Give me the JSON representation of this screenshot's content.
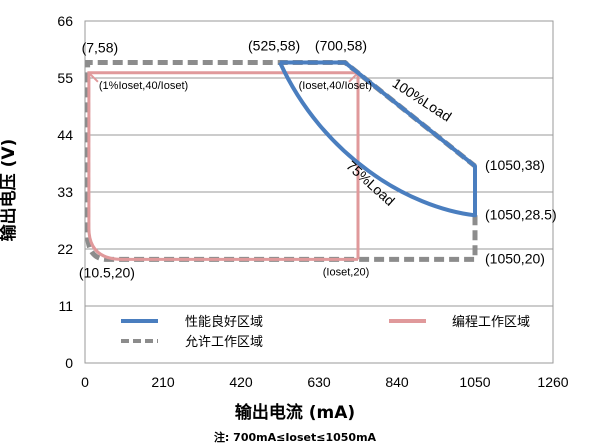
{
  "chart_data": {
    "type": "line",
    "xlabel": "输出电流 (mA)",
    "ylabel": "输出电压 (V)",
    "note": "注: 700mA≤Ioset≤1050mA",
    "xlim": [
      0,
      1260
    ],
    "ylim": [
      0,
      66
    ],
    "xticks": [
      0,
      210,
      420,
      630,
      840,
      1050,
      1260
    ],
    "yticks": [
      0,
      11,
      22,
      33,
      44,
      55,
      66
    ],
    "grid": "horizontal",
    "legend_position": "bottom-left",
    "series": [
      {
        "name": "性能良好区域",
        "color": "#4a7ebf",
        "style": "solid",
        "points": [
          [
            525,
            58
          ],
          [
            700,
            58
          ],
          [
            1050,
            38
          ],
          [
            1050,
            28.5
          ],
          [
            560,
            55
          ],
          [
            525,
            58
          ]
        ]
      },
      {
        "name": "编程工作区域",
        "color": "#e0999b",
        "style": "solid",
        "points": [
          [
            10.5,
            20
          ],
          [
            735,
            20
          ],
          [
            735,
            56
          ],
          [
            10.5,
            56
          ],
          [
            10.5,
            20
          ]
        ]
      },
      {
        "name": "允许工作区域",
        "color": "#8c8c8c",
        "style": "dashed",
        "points": [
          [
            7,
            58
          ],
          [
            700,
            58
          ],
          [
            1050,
            38
          ],
          [
            1050,
            20
          ],
          [
            10.5,
            20
          ],
          [
            7,
            58
          ]
        ]
      }
    ],
    "annotations": [
      {
        "text": "(7,58)",
        "x": 7,
        "y": 58
      },
      {
        "text": "(525,58)",
        "x": 525,
        "y": 58
      },
      {
        "text": "(700,58)",
        "x": 700,
        "y": 58
      },
      {
        "text": "(1050,38)",
        "x": 1050,
        "y": 38
      },
      {
        "text": "(1050,28.5)",
        "x": 1050,
        "y": 28.5
      },
      {
        "text": "(1050,20)",
        "x": 1050,
        "y": 20
      },
      {
        "text": "(10.5,20)",
        "x": 10.5,
        "y": 20
      },
      {
        "text": "(Ioset,20)",
        "x": 735,
        "y": 20
      },
      {
        "text": "(1%Ioset,40/Ioset)",
        "x": 10.5,
        "y": 56
      },
      {
        "text": "(Ioset,40/Ioset)",
        "x": 735,
        "y": 56
      },
      {
        "text": "100%Load",
        "x": 900,
        "y": 50
      },
      {
        "text": "75%Load",
        "x": 760,
        "y": 34
      }
    ]
  }
}
